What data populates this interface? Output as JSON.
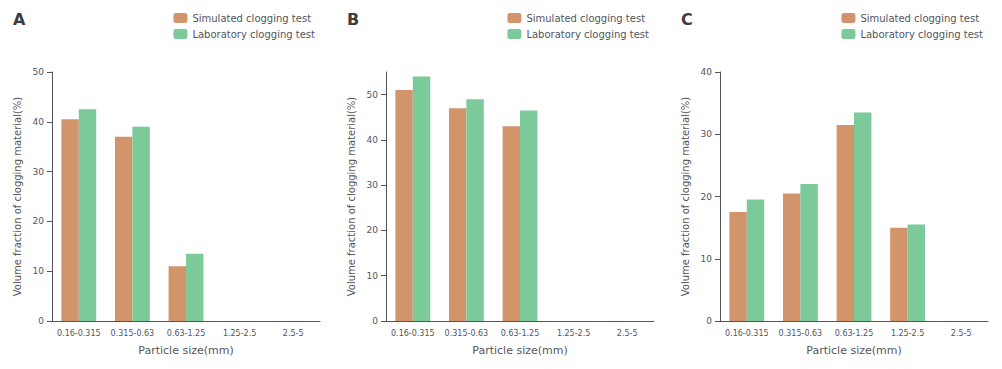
{
  "chart_data": [
    {
      "type": "bar",
      "title": "A",
      "categories": [
        "0.16-0.315",
        "0.315-0.63",
        "0.63-1.25",
        "1.25-2.5",
        "2.5-5"
      ],
      "series": [
        {
          "name": "Simulated clogging test",
          "color": "#D2956B",
          "values": [
            40.5,
            37.0,
            11.0,
            0,
            0
          ]
        },
        {
          "name": "Laboratory clogging test",
          "color": "#7CC99A",
          "values": [
            42.5,
            39.0,
            13.5,
            0,
            0
          ]
        }
      ],
      "xlabel": "Particle size(mm)",
      "ylabel": "Volume fraction of clogging material(%)",
      "ylim": [
        0,
        50
      ],
      "yticks": [
        0,
        10,
        20,
        30,
        40,
        50
      ],
      "grid": false,
      "legend": "upper right"
    },
    {
      "type": "bar",
      "title": "B",
      "categories": [
        "0.16-0.315",
        "0.315-0.63",
        "0.63-1.25",
        "1.25-2.5",
        "2.5-5"
      ],
      "series": [
        {
          "name": "Simulated clogging test",
          "color": "#D2956B",
          "values": [
            51.0,
            47.0,
            43.0,
            0,
            0
          ]
        },
        {
          "name": "Laboratory clogging test",
          "color": "#7CC99A",
          "values": [
            54.0,
            49.0,
            46.5,
            0,
            0
          ]
        }
      ],
      "xlabel": "Particle size(mm)",
      "ylabel": "Volume fraction of clogging material(%)",
      "ylim": [
        0,
        55
      ],
      "yticks": [
        0,
        10,
        20,
        30,
        40,
        50
      ],
      "grid": false,
      "legend": "upper right"
    },
    {
      "type": "bar",
      "title": "C",
      "categories": [
        "0.16-0.315",
        "0.315-0.63",
        "0.63-1.25",
        "1.25-2.5",
        "2.5-5"
      ],
      "series": [
        {
          "name": "Simulated clogging test",
          "color": "#D2956B",
          "values": [
            17.5,
            20.5,
            31.5,
            15.0,
            0
          ]
        },
        {
          "name": "Laboratory clogging test",
          "color": "#7CC99A",
          "values": [
            19.5,
            22.0,
            33.5,
            15.5,
            0
          ]
        }
      ],
      "xlabel": "Particle size(mm)",
      "ylabel": "Volume fraction of clogging material(%)",
      "ylim": [
        0,
        40
      ],
      "yticks": [
        0,
        10,
        20,
        30,
        40
      ],
      "grid": false,
      "legend": "upper right"
    }
  ]
}
